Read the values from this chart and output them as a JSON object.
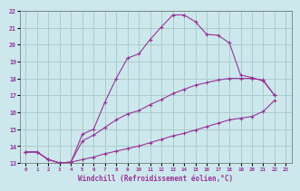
{
  "xlabel": "Windchill (Refroidissement éolien,°C)",
  "xlim": [
    -0.5,
    23.5
  ],
  "ylim": [
    13,
    22
  ],
  "xticks": [
    0,
    1,
    2,
    3,
    4,
    5,
    6,
    7,
    8,
    9,
    10,
    11,
    12,
    13,
    14,
    15,
    16,
    17,
    18,
    19,
    20,
    21,
    22,
    23
  ],
  "yticks": [
    13,
    14,
    15,
    16,
    17,
    18,
    19,
    20,
    21,
    22
  ],
  "bg_color": "#cce8ec",
  "grid_color": "#aacccc",
  "line_color": "#993399",
  "line1_x": [
    0,
    1,
    2,
    3,
    4,
    5,
    6,
    7,
    8,
    9,
    10,
    11,
    12,
    13,
    14,
    15,
    16,
    17,
    18,
    19,
    20,
    21,
    22
  ],
  "line1_y": [
    13.65,
    13.65,
    13.2,
    13.0,
    13.05,
    14.7,
    15.0,
    16.6,
    18.0,
    19.2,
    19.45,
    20.3,
    21.05,
    21.75,
    21.75,
    21.35,
    20.6,
    20.55,
    20.1,
    18.2,
    18.05,
    17.85,
    17.0
  ],
  "line2_x": [
    0,
    1,
    2,
    3,
    4,
    5,
    6,
    7,
    8,
    9,
    10,
    11,
    12,
    13,
    14,
    15,
    16,
    17,
    18,
    19,
    20,
    21,
    22
  ],
  "line2_y": [
    13.65,
    13.65,
    13.2,
    13.0,
    13.05,
    14.3,
    14.65,
    15.1,
    15.55,
    15.9,
    16.1,
    16.45,
    16.75,
    17.1,
    17.35,
    17.6,
    17.75,
    17.9,
    18.0,
    18.0,
    18.0,
    17.9,
    17.0
  ],
  "line3_x": [
    0,
    1,
    2,
    3,
    4,
    5,
    6,
    7,
    8,
    9,
    10,
    11,
    12,
    13,
    14,
    15,
    16,
    17,
    18,
    19,
    20,
    21,
    22
  ],
  "line3_y": [
    13.65,
    13.65,
    13.2,
    13.0,
    13.05,
    13.2,
    13.35,
    13.55,
    13.7,
    13.85,
    14.0,
    14.2,
    14.4,
    14.6,
    14.75,
    14.95,
    15.15,
    15.35,
    15.55,
    15.65,
    15.75,
    16.05,
    16.7
  ]
}
